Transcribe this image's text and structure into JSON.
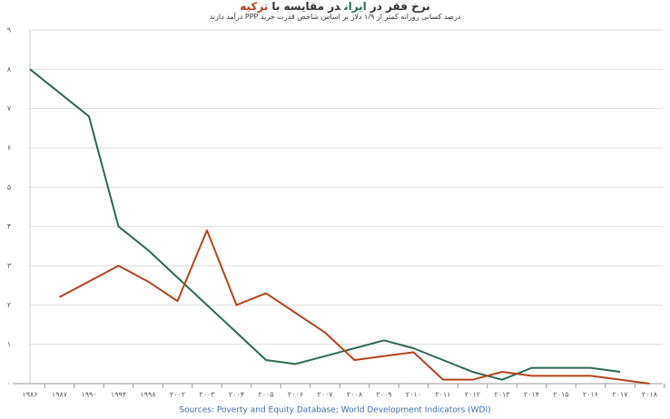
{
  "chart_data": {
    "type": "line",
    "title": [
      "نرخ فقر در",
      "در مقایسه با"
    ],
    "subtitle": "درصد کسانی روزانه کمتر از ۱/۹ دلار بر اساس شاخص قدرت خرید PPP درآمد دارند",
    "source": "Sources: Poverty and Equity Database; World Development Indicators (WDI)",
    "categories": [
      "۱۹۸۶",
      "۱۹۸۷",
      "۱۹۹۰",
      "۱۹۹۴",
      "۱۹۹۸",
      "۲۰۰۲",
      "۲۰۰۳",
      "۲۰۰۴",
      "۲۰۰۵",
      "۲۰۰۶",
      "۲۰۰۷",
      "۲۰۰۸",
      "۲۰۰۹",
      "۲۰۱۰",
      "۲۰۱۱",
      "۲۰۱۲",
      "۲۰۱۳",
      "۲۰۱۴",
      "۲۰۱۵",
      "۲۰۱۶",
      "۲۰۱۷",
      "۲۰۱۸"
    ],
    "series": [
      {
        "name": "ایران",
        "color": "#2d6a4f",
        "values": [
          8.0,
          7.4,
          6.8,
          4.0,
          3.4,
          2.7,
          2.0,
          1.3,
          0.6,
          0.5,
          0.7,
          0.9,
          1.1,
          0.9,
          0.6,
          0.3,
          0.1,
          0.4,
          0.4,
          0.4,
          0.3,
          null
        ]
      },
      {
        "name": "ترکیه",
        "color": "#b4441f",
        "values": [
          null,
          2.2,
          2.6,
          3.0,
          2.6,
          2.1,
          3.9,
          2.0,
          2.3,
          1.8,
          1.3,
          0.6,
          0.7,
          0.8,
          0.1,
          0.1,
          0.3,
          0.2,
          0.2,
          0.2,
          0.1,
          0.0
        ]
      }
    ],
    "ylim": [
      0,
      9
    ],
    "yticks": [
      {
        "value": 0,
        "label": "۰"
      },
      {
        "value": 1,
        "label": "۱"
      },
      {
        "value": 2,
        "label": "۲"
      },
      {
        "value": 3,
        "label": "۳"
      },
      {
        "value": 4,
        "label": "۴"
      },
      {
        "value": 5,
        "label": "۵"
      },
      {
        "value": 6,
        "label": "۶"
      },
      {
        "value": 7,
        "label": "۷"
      },
      {
        "value": 8,
        "label": "۸"
      },
      {
        "value": 9,
        "label": "۹"
      }
    ],
    "grid": true
  }
}
